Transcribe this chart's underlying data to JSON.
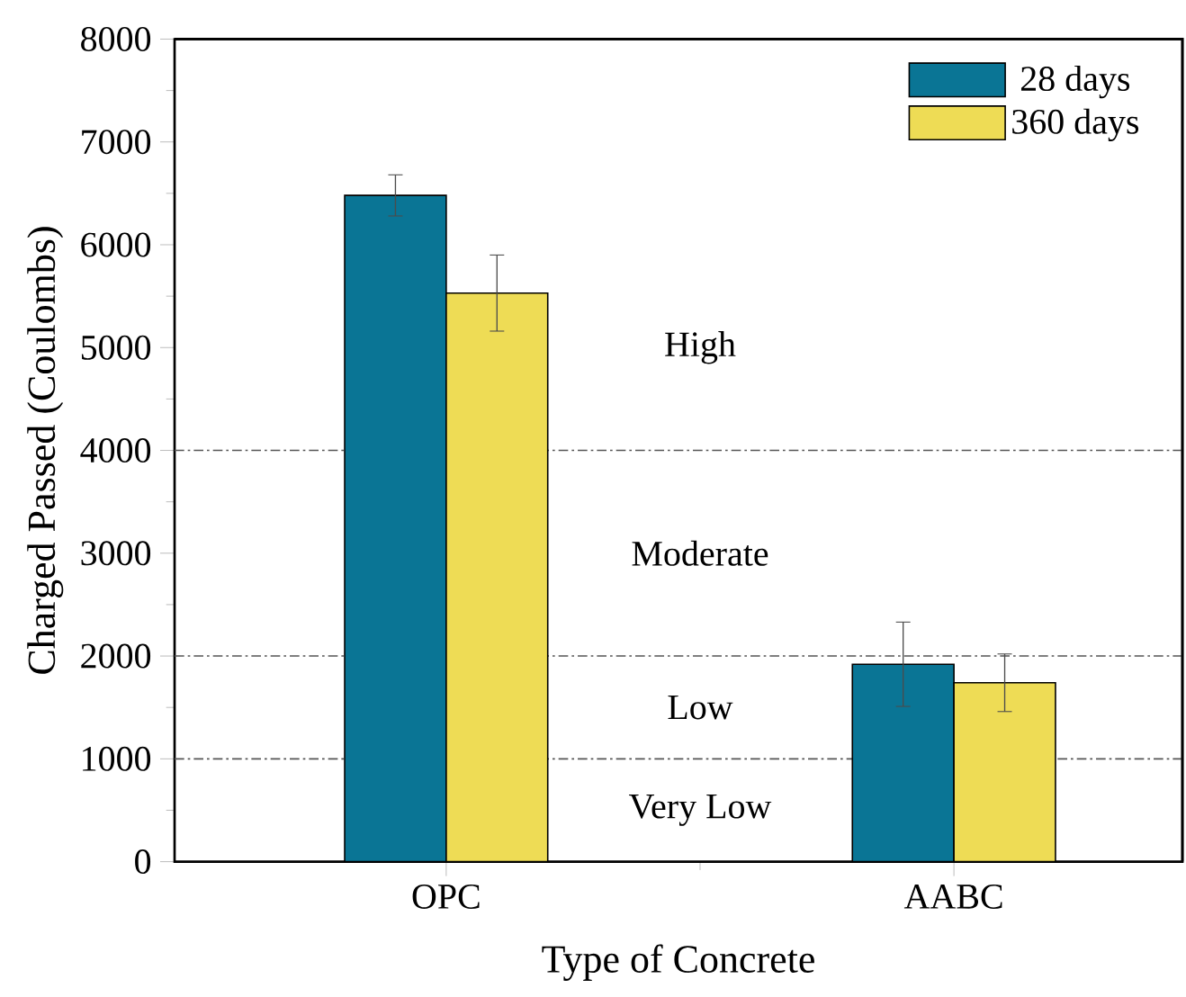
{
  "chart_data": {
    "type": "bar",
    "xlabel": "Type of Concrete",
    "ylabel": "Charged Passed (Coulombs)",
    "categories": [
      "OPC",
      "AABC"
    ],
    "series": [
      {
        "name": "28 days",
        "color": "#0a7595",
        "values": [
          6480,
          1920
        ],
        "errors": [
          200,
          410
        ]
      },
      {
        "name": "360 days",
        "color": "#eedc55",
        "values": [
          5530,
          1740
        ],
        "errors": [
          370,
          280
        ]
      }
    ],
    "ylim": [
      0,
      8000
    ],
    "yticks": [
      0,
      1000,
      2000,
      3000,
      4000,
      5000,
      6000,
      7000,
      8000
    ],
    "ref_lines": [
      {
        "axis": "y",
        "value": 1000,
        "color": "#555555",
        "line_style": "dashed"
      },
      {
        "axis": "y",
        "value": 2000,
        "color": "#555555",
        "line_style": "dashed"
      },
      {
        "axis": "y",
        "value": 4000,
        "color": "#555555",
        "line_style": "dashed"
      }
    ],
    "annotations": [
      "High",
      "Moderate",
      "Low",
      "Very Low"
    ],
    "grid": false,
    "legend": "top right"
  }
}
